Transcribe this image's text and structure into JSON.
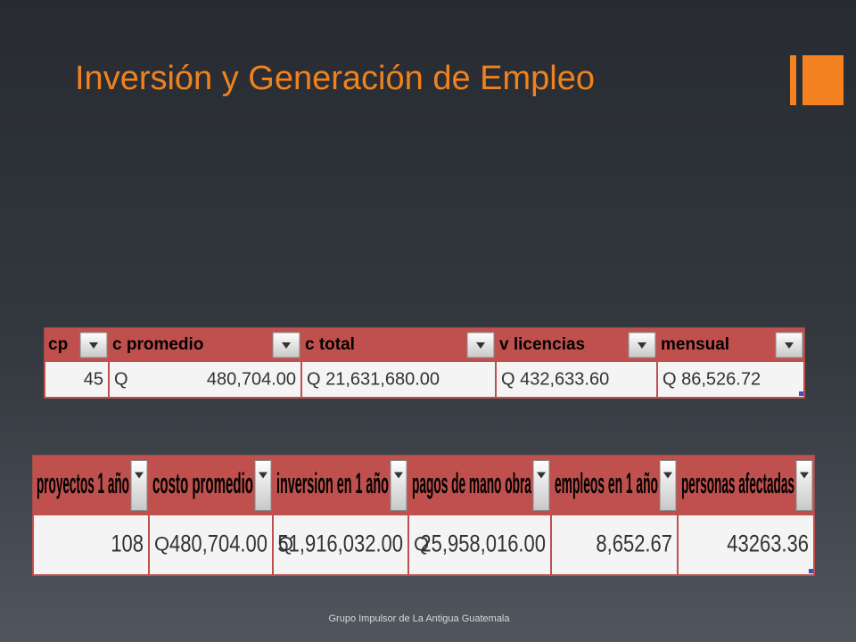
{
  "title": "Inversión y Generación de Empleo",
  "footer": "Grupo Impulsor de La Antigua Guatemala",
  "tables": [
    {
      "headers": [
        "cp",
        "c promedio",
        "c total",
        "v licencias",
        "mensual"
      ],
      "rows": [
        [
          {
            "text": "45"
          },
          {
            "prefix": "Q",
            "text": "480,704.00"
          },
          {
            "text": "Q 21,631,680.00"
          },
          {
            "text": "Q 432,633.60"
          },
          {
            "text": "Q 86,526.72"
          }
        ]
      ]
    },
    {
      "headers": [
        "proyectos 1 año",
        "costo promedio",
        "inversion en 1 año",
        "pagos de mano obra",
        "empleos en 1 año",
        "personas afectadas"
      ],
      "rows": [
        [
          {
            "text": "108"
          },
          {
            "prefix": "Q",
            "text": "480,704.00"
          },
          {
            "prefix": "Q",
            "text": "51,916,032.00"
          },
          {
            "prefix": "Q",
            "text": "25,958,016.00"
          },
          {
            "text": "8,652.67"
          },
          {
            "text": "43263.36"
          }
        ]
      ]
    }
  ]
}
